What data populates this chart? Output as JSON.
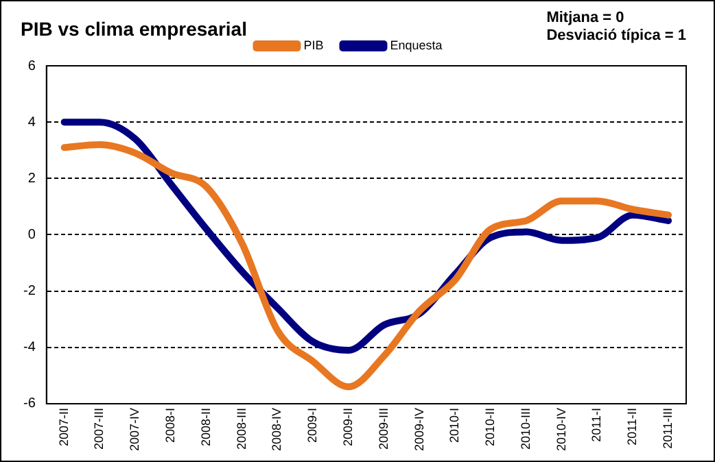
{
  "chart_data": {
    "type": "line",
    "title": "PIB vs clima empresarial",
    "annotations": [
      "Mitjana = 0",
      "Desviació típica = 1"
    ],
    "categories": [
      "2007-II",
      "2007-III",
      "2007-IV",
      "2008-I",
      "2008-II",
      "2008-III",
      "2008-IV",
      "2009-I",
      "2009-II",
      "2009-III",
      "2009-IV",
      "2010-I",
      "2010-II",
      "2010-III",
      "2010-IV",
      "2011-I",
      "2011-II",
      "2011-III"
    ],
    "series": [
      {
        "name": "PIB",
        "color": "#e87722",
        "values": [
          3.1,
          3.2,
          2.9,
          2.2,
          1.7,
          -0.3,
          -3.4,
          -4.5,
          -5.4,
          -4.3,
          -2.7,
          -1.6,
          0.2,
          0.5,
          1.2,
          1.2,
          0.9,
          0.7
        ]
      },
      {
        "name": "Enquesta",
        "color": "#000080",
        "values": [
          4.0,
          4.0,
          3.4,
          1.8,
          0.2,
          -1.3,
          -2.6,
          -3.8,
          -4.1,
          -3.2,
          -2.8,
          -1.4,
          -0.1,
          0.1,
          -0.2,
          -0.1,
          0.7,
          0.5
        ]
      }
    ],
    "ylim": [
      -6,
      6
    ],
    "yticks": [
      -6,
      -4,
      -2,
      0,
      2,
      4,
      6
    ],
    "grid": "y",
    "legend": "top",
    "marker": "none",
    "line_style": "solid"
  }
}
